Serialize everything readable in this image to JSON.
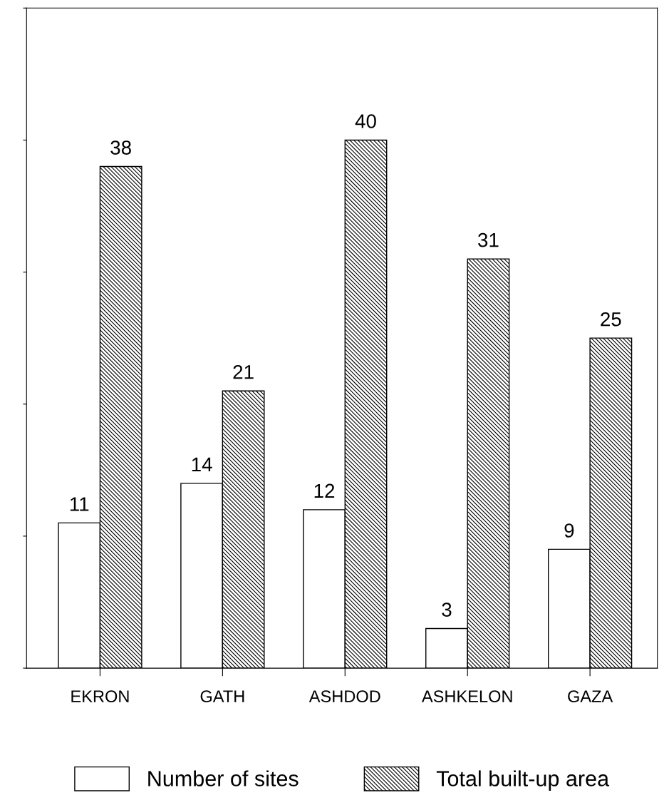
{
  "chart_data": {
    "type": "bar",
    "categories": [
      "EKRON",
      "GATH",
      "ASHDOD",
      "ASHKELON",
      "GAZA"
    ],
    "series": [
      {
        "name": "Number of sites",
        "color": "#ffffff",
        "values": [
          11,
          14,
          12,
          3,
          9
        ]
      },
      {
        "name": "Total built-up area",
        "color": "#000000",
        "values": [
          38,
          21,
          40,
          31,
          25
        ]
      }
    ],
    "ylim": [
      0,
      50
    ],
    "yticks": [
      {
        "value": 0,
        "label": null
      },
      {
        "value": 10,
        "label": null
      },
      {
        "value": 20,
        "label": null
      },
      {
        "value": 30,
        "label": null
      },
      {
        "value": 40,
        "label": null
      },
      {
        "value": 50,
        "label": null
      }
    ],
    "tick_labels": "x",
    "data_labels": true,
    "grid": false,
    "legend": "bottom"
  }
}
